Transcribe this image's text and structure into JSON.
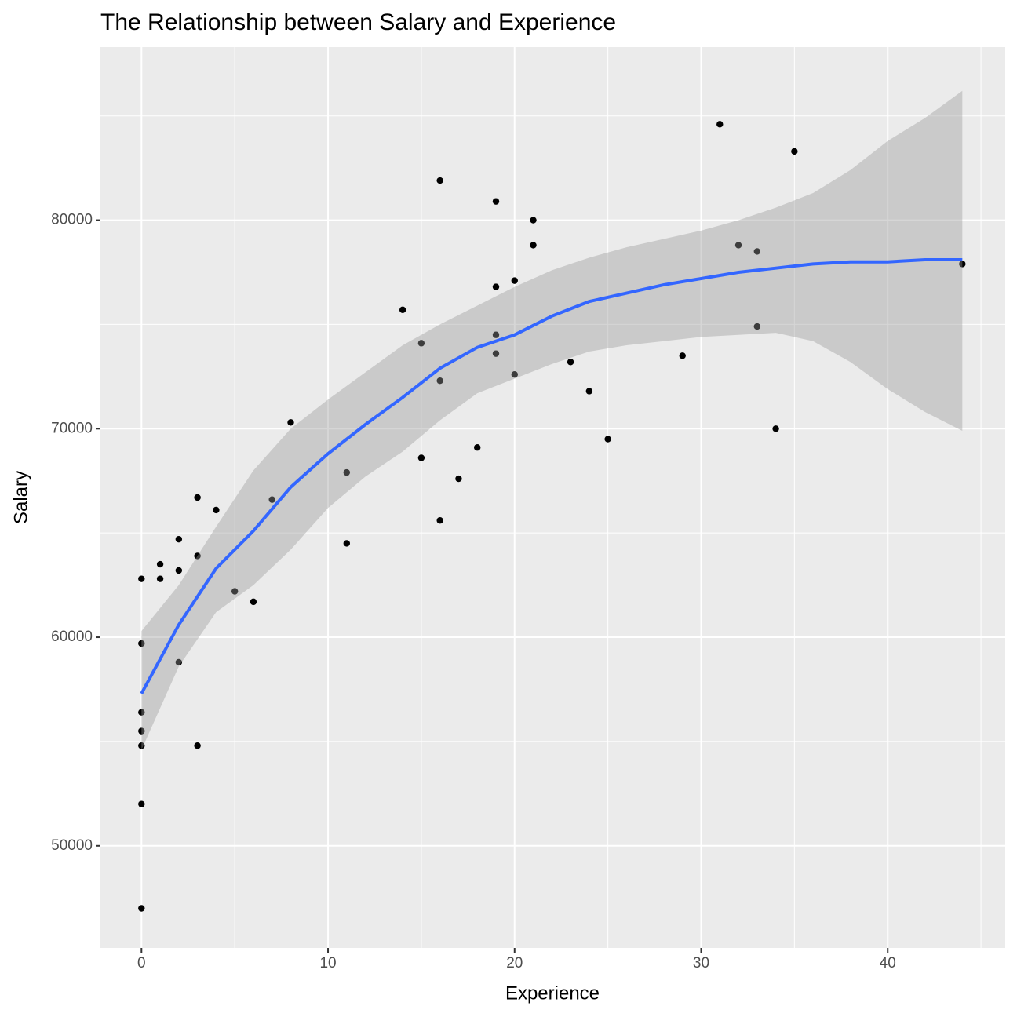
{
  "chart_data": {
    "type": "scatter",
    "title": "The Relationship between Salary and Experience",
    "x_label": "Experience",
    "y_label": "Salary",
    "xlim": [
      -2.2,
      46.3
    ],
    "ylim": [
      45100,
      88300
    ],
    "xticks": [
      0,
      10,
      20,
      30,
      40
    ],
    "yticks": [
      50000,
      60000,
      70000,
      80000
    ],
    "grid": true,
    "minor_grid": true,
    "points": {
      "color": "#000000",
      "x": [
        0,
        0,
        0,
        0,
        0,
        0,
        0,
        1,
        1,
        2,
        2,
        2,
        3,
        3,
        3,
        4,
        5,
        6,
        7,
        8,
        11,
        11,
        14,
        15,
        15,
        16,
        16,
        16,
        17,
        18,
        19,
        19,
        19,
        19,
        20,
        20,
        21,
        21,
        23,
        24,
        25,
        29,
        31,
        32,
        33,
        33,
        34,
        35,
        44
      ],
      "y": [
        62800,
        59700,
        56400,
        55500,
        54800,
        52000,
        47000,
        63500,
        62800,
        64700,
        63200,
        58800,
        66700,
        63900,
        54800,
        66100,
        62200,
        61700,
        66600,
        70300,
        67900,
        64500,
        75700,
        74100,
        68600,
        81900,
        72300,
        65600,
        67600,
        69100,
        80900,
        76800,
        74500,
        73600,
        77100,
        72600,
        80000,
        78800,
        73200,
        71800,
        69500,
        73500,
        84600,
        78800,
        78500,
        74900,
        70000,
        83300,
        77900
      ]
    },
    "smooth": {
      "color": "#3366FF",
      "band_color": "#999999",
      "x": [
        0,
        2,
        4,
        6,
        8,
        10,
        12,
        14,
        16,
        18,
        20,
        22,
        24,
        26,
        28,
        30,
        32,
        34,
        36,
        38,
        40,
        42,
        44
      ],
      "y": [
        57300,
        60600,
        63300,
        65100,
        67200,
        68800,
        70200,
        71500,
        72900,
        73900,
        74500,
        75400,
        76100,
        76500,
        76900,
        77200,
        77500,
        77700,
        77900,
        78000,
        78000,
        78100,
        78100
      ],
      "lower": [
        54600,
        58600,
        61200,
        62500,
        64200,
        66200,
        67700,
        68900,
        70400,
        71700,
        72400,
        73100,
        73700,
        74000,
        74200,
        74400,
        74500,
        74600,
        74200,
        73200,
        71900,
        70800,
        69900
      ],
      "upper": [
        60300,
        62500,
        65300,
        68000,
        70000,
        71400,
        72700,
        74000,
        75000,
        75900,
        76800,
        77600,
        78200,
        78700,
        79100,
        79500,
        80000,
        80600,
        81300,
        82400,
        83800,
        84900,
        86200
      ]
    }
  }
}
